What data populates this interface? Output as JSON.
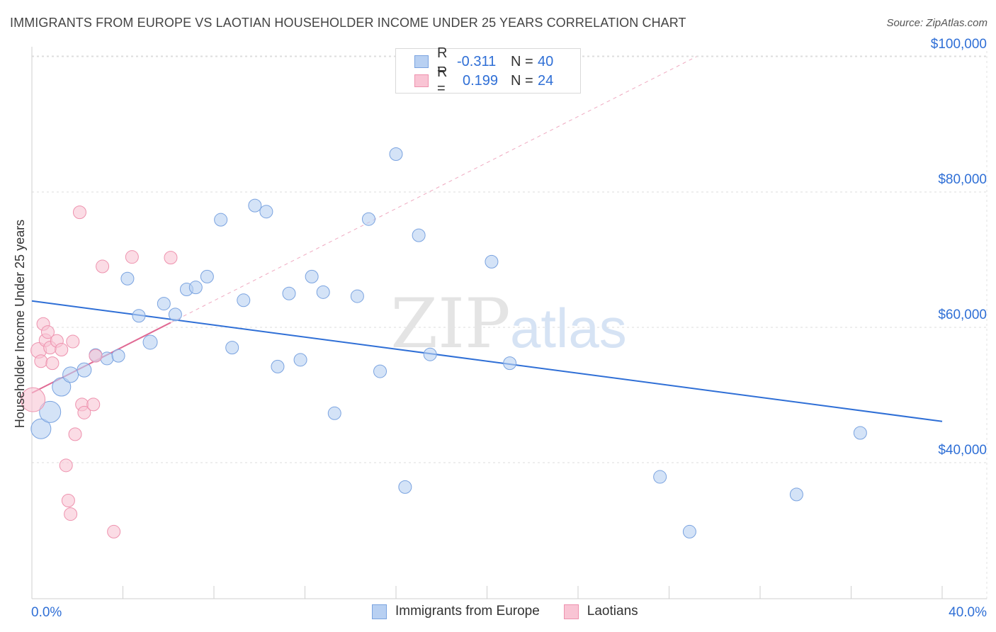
{
  "title": "IMMIGRANTS FROM EUROPE VS LAOTIAN HOUSEHOLDER INCOME UNDER 25 YEARS CORRELATION CHART",
  "source": "Source: ZipAtlas.com",
  "watermark": {
    "zip": "ZIP",
    "atlas": "atlas"
  },
  "legend": {
    "rows": [
      {
        "r_label": "R =",
        "r_value": "-0.311",
        "n_label": "N =",
        "n_value": "40",
        "fill": "#b8d0f2",
        "stroke": "#7aa3e0"
      },
      {
        "r_label": "R =",
        "r_value": "0.199",
        "n_label": "N =",
        "n_value": "24",
        "fill": "#f9c4d4",
        "stroke": "#ee92ae"
      }
    ]
  },
  "bottom_legend": [
    {
      "label": "Immigrants from Europe",
      "fill": "#b8d0f2",
      "stroke": "#7aa3e0"
    },
    {
      "label": "Laotians",
      "fill": "#f9c4d4",
      "stroke": "#ee92ae"
    }
  ],
  "chart_data": {
    "type": "scatter",
    "title": "IMMIGRANTS FROM EUROPE VS LAOTIAN HOUSEHOLDER INCOME UNDER 25 YEARS CORRELATION CHART",
    "xlabel": "",
    "ylabel": "Householder Income Under 25 years",
    "xlim": [
      0,
      40
    ],
    "ylim": [
      20000,
      103000
    ],
    "x_tick_labels": [
      {
        "value": 0,
        "label": "0.0%"
      },
      {
        "value": 40,
        "label": "40.0%"
      }
    ],
    "y_ticks": [
      {
        "value": 40000,
        "label": "$40,000"
      },
      {
        "value": 60000,
        "label": "$60,000"
      },
      {
        "value": 80000,
        "label": "$80,000"
      },
      {
        "value": 100000,
        "label": "$100,000"
      }
    ],
    "grid": true,
    "series": [
      {
        "name": "Immigrants from Europe",
        "color": "#2f6fd6",
        "fill": "#b8d0f2",
        "stroke": "#7aa3e0",
        "points": [
          [
            0.4,
            45000,
            14
          ],
          [
            0.8,
            47500,
            15
          ],
          [
            1.3,
            51200,
            13
          ],
          [
            1.7,
            53000,
            11
          ],
          [
            2.3,
            53700,
            10
          ],
          [
            2.8,
            55900,
            9
          ],
          [
            3.3,
            55400,
            9
          ],
          [
            3.8,
            55800,
            9
          ],
          [
            4.2,
            67200,
            9
          ],
          [
            4.7,
            61700,
            9
          ],
          [
            5.2,
            57800,
            10
          ],
          [
            5.8,
            63500,
            9
          ],
          [
            6.3,
            61900,
            9
          ],
          [
            6.8,
            65600,
            9
          ],
          [
            7.2,
            65900,
            9
          ],
          [
            7.7,
            67500,
            9
          ],
          [
            8.3,
            75900,
            9
          ],
          [
            8.8,
            57000,
            9
          ],
          [
            9.3,
            64000,
            9
          ],
          [
            9.8,
            78000,
            9
          ],
          [
            10.3,
            77100,
            9
          ],
          [
            10.8,
            54200,
            9
          ],
          [
            11.3,
            65000,
            9
          ],
          [
            11.8,
            55200,
            9
          ],
          [
            12.3,
            67500,
            9
          ],
          [
            12.8,
            65200,
            9
          ],
          [
            13.3,
            47300,
            9
          ],
          [
            14.3,
            64600,
            9
          ],
          [
            14.8,
            76000,
            9
          ],
          [
            15.3,
            53500,
            9
          ],
          [
            16.0,
            85600,
            9
          ],
          [
            16.4,
            36400,
            9
          ],
          [
            17.0,
            73600,
            9
          ],
          [
            17.5,
            56000,
            9
          ],
          [
            20.2,
            69700,
            9
          ],
          [
            21.0,
            54700,
            9
          ],
          [
            27.6,
            37900,
            9
          ],
          [
            28.9,
            29800,
            9
          ],
          [
            33.6,
            35300,
            9
          ],
          [
            36.4,
            44400,
            9
          ]
        ],
        "trend": {
          "x": [
            0,
            40
          ],
          "y": [
            63900,
            46100
          ],
          "style": "solid"
        }
      },
      {
        "name": "Laotians",
        "color": "#e06a94",
        "fill": "#f9c4d4",
        "stroke": "#ee92ae",
        "points": [
          [
            0.05,
            49300,
            17
          ],
          [
            0.3,
            56600,
            11
          ],
          [
            0.4,
            55000,
            9
          ],
          [
            0.5,
            60500,
            9
          ],
          [
            0.6,
            58100,
            9
          ],
          [
            0.7,
            59300,
            9
          ],
          [
            0.8,
            57000,
            9
          ],
          [
            0.9,
            54700,
            9
          ],
          [
            1.1,
            58000,
            9
          ],
          [
            1.3,
            56700,
            9
          ],
          [
            1.5,
            39600,
            9
          ],
          [
            1.6,
            34400,
            9
          ],
          [
            1.7,
            32400,
            9
          ],
          [
            1.8,
            57900,
            9
          ],
          [
            1.9,
            44200,
            9
          ],
          [
            2.1,
            77000,
            9
          ],
          [
            2.2,
            48600,
            9
          ],
          [
            2.3,
            47400,
            9
          ],
          [
            2.7,
            48600,
            9
          ],
          [
            2.8,
            55800,
            9
          ],
          [
            3.1,
            69000,
            9
          ],
          [
            3.6,
            29800,
            9
          ],
          [
            4.4,
            70400,
            9
          ],
          [
            6.1,
            70300,
            9
          ]
        ],
        "trend": {
          "x": [
            0,
            6.1
          ],
          "y": [
            50300,
            60700
          ],
          "style": "solid",
          "extension": {
            "x": [
              6.1,
              29.2
            ],
            "y": [
              60700,
              100000
            ],
            "style": "dashed"
          }
        }
      }
    ]
  }
}
